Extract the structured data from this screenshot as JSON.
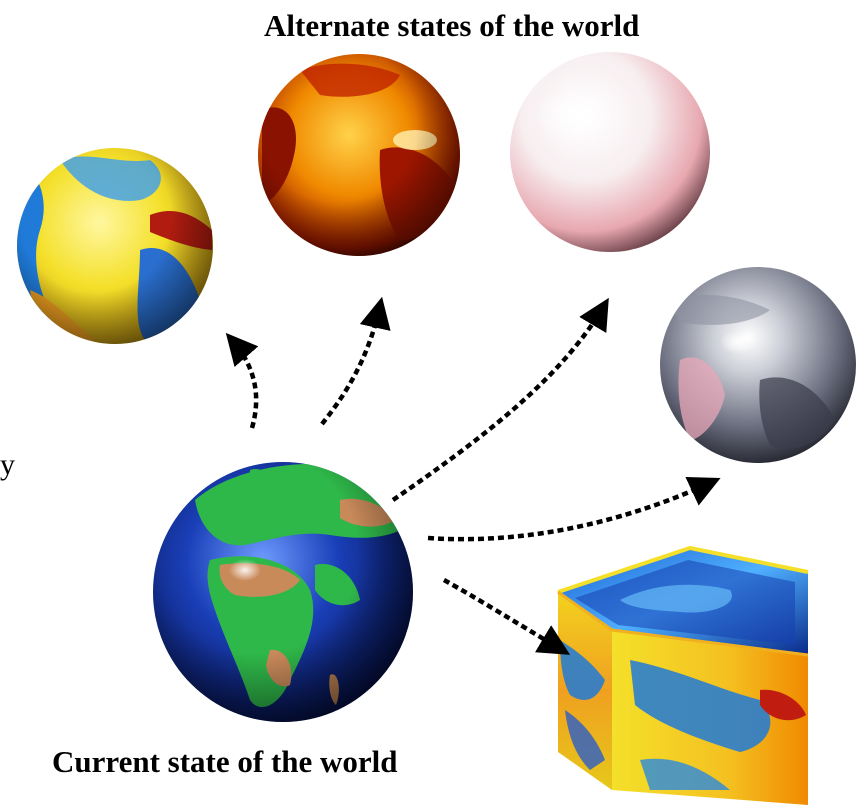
{
  "labels": {
    "alternate_states": "Alternate states of the world",
    "current_state": "Current state of the world",
    "stray_mark": "y"
  },
  "icons": [
    "earth-globe-icon",
    "warm-yellow-globe-icon",
    "hot-orange-globe-icon",
    "white-snowball-globe-icon",
    "silver-gray-globe-icon",
    "textured-cube-world-icon",
    "dotted-arrow-icon"
  ],
  "colors": {
    "ocean_blue": "#1a3fb8",
    "land_green": "#2fb84a",
    "land_tan": "#c98a5a",
    "hot_orange": "#f08a00",
    "hot_red": "#a01800",
    "warm_yellow": "#f4e02a",
    "cool_blue": "#1f7ad8",
    "snow_white": "#ffffff",
    "snow_pink": "#f2c4c8",
    "silver": "#b8bcc6",
    "dark_slate": "#2a2c3a",
    "arrow": "#000000"
  }
}
